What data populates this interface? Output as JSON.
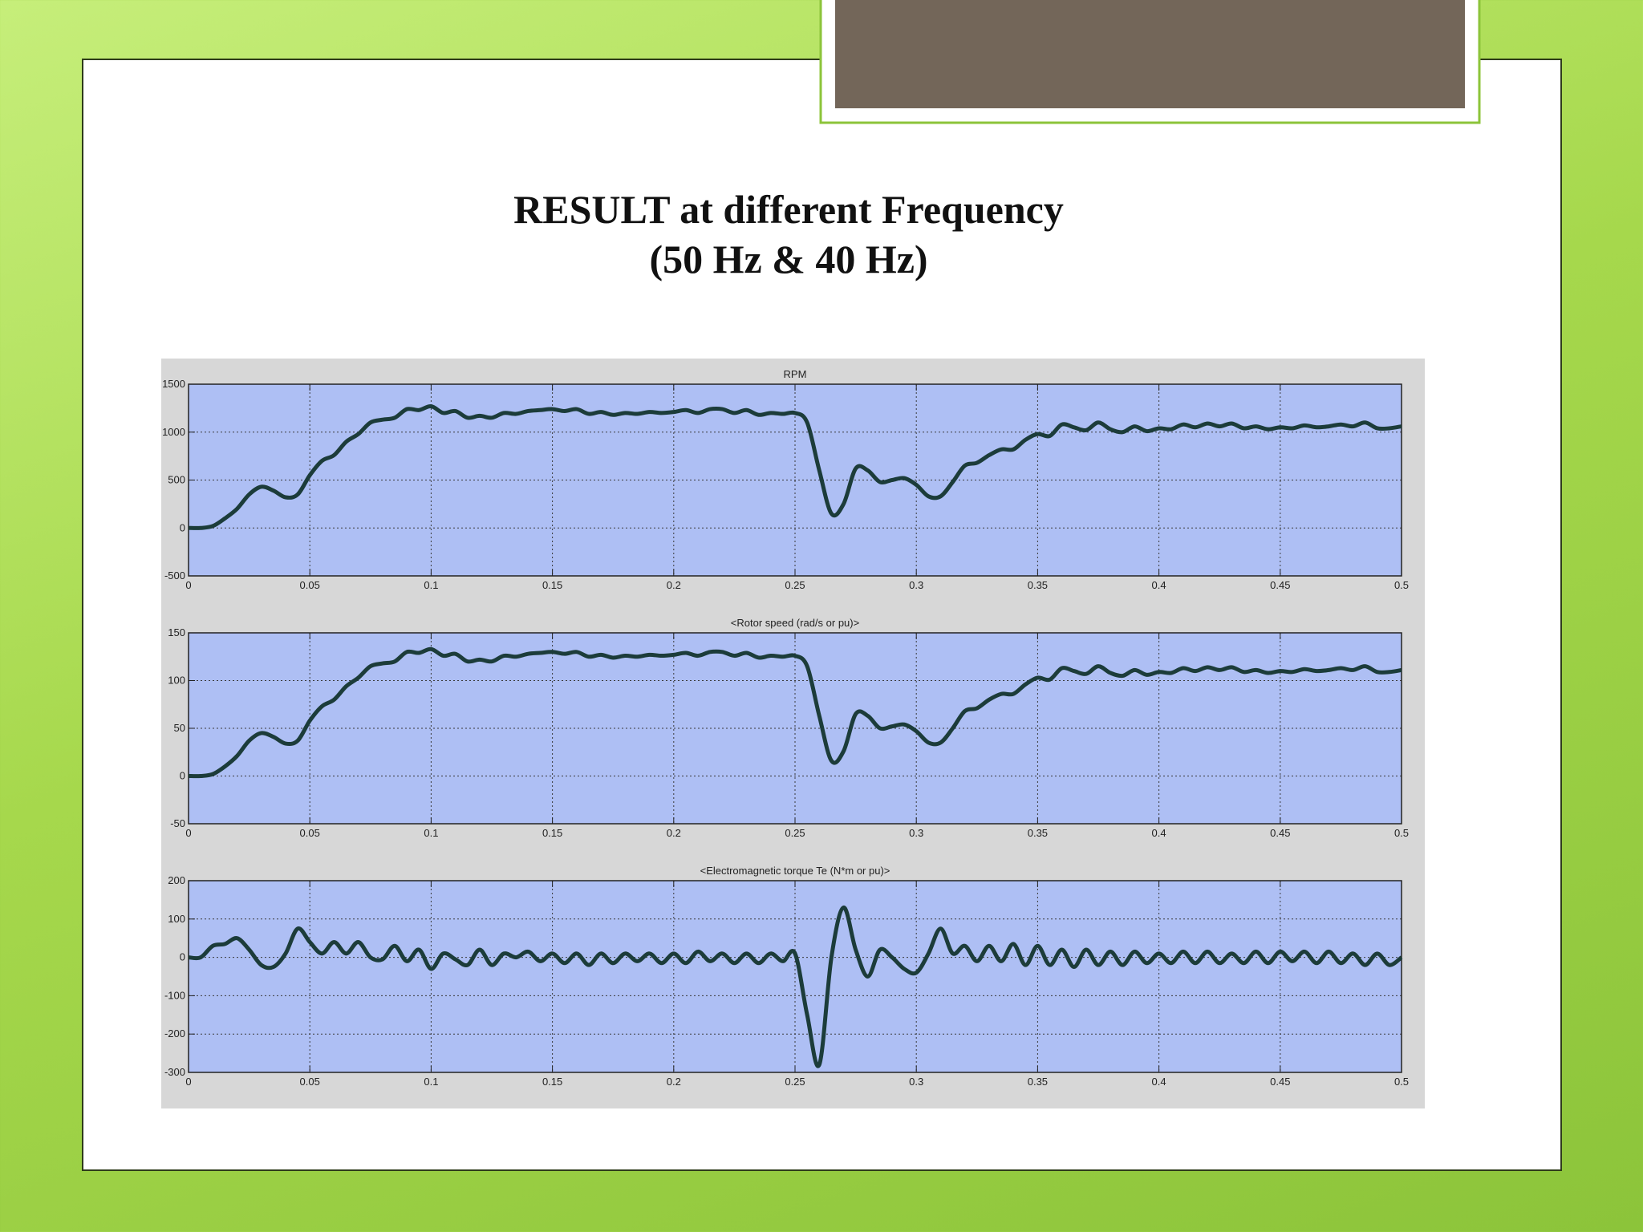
{
  "title": [
    "RESULT at different Frequency",
    "(50 Hz & 40 Hz)"
  ],
  "chart_data": [
    {
      "type": "line",
      "title": "RPM",
      "x": [
        0,
        0.005,
        0.01,
        0.015,
        0.02,
        0.025,
        0.03,
        0.035,
        0.04,
        0.045,
        0.05,
        0.055,
        0.06,
        0.065,
        0.07,
        0.075,
        0.08,
        0.085,
        0.09,
        0.095,
        0.1,
        0.105,
        0.11,
        0.115,
        0.12,
        0.125,
        0.13,
        0.135,
        0.14,
        0.145,
        0.15,
        0.155,
        0.16,
        0.165,
        0.17,
        0.175,
        0.18,
        0.185,
        0.19,
        0.195,
        0.2,
        0.205,
        0.21,
        0.215,
        0.22,
        0.225,
        0.23,
        0.235,
        0.24,
        0.245,
        0.25,
        0.255,
        0.26,
        0.265,
        0.27,
        0.275,
        0.28,
        0.285,
        0.29,
        0.295,
        0.3,
        0.305,
        0.31,
        0.315,
        0.32,
        0.325,
        0.33,
        0.335,
        0.34,
        0.345,
        0.35,
        0.355,
        0.36,
        0.365,
        0.37,
        0.375,
        0.38,
        0.385,
        0.39,
        0.395,
        0.4,
        0.405,
        0.41,
        0.415,
        0.42,
        0.425,
        0.43,
        0.435,
        0.44,
        0.445,
        0.45,
        0.455,
        0.46,
        0.465,
        0.47,
        0.475,
        0.48,
        0.485,
        0.49,
        0.495,
        0.5
      ],
      "values": [
        0,
        0,
        20,
        100,
        200,
        350,
        430,
        390,
        320,
        350,
        550,
        700,
        760,
        900,
        980,
        1100,
        1130,
        1150,
        1240,
        1230,
        1270,
        1200,
        1220,
        1150,
        1170,
        1150,
        1200,
        1190,
        1220,
        1230,
        1240,
        1220,
        1240,
        1190,
        1210,
        1180,
        1200,
        1190,
        1210,
        1200,
        1210,
        1230,
        1200,
        1240,
        1240,
        1200,
        1230,
        1180,
        1200,
        1190,
        1200,
        1100,
        600,
        150,
        250,
        620,
        600,
        480,
        500,
        520,
        450,
        330,
        330,
        480,
        650,
        680,
        760,
        820,
        820,
        920,
        980,
        960,
        1080,
        1050,
        1020,
        1100,
        1030,
        1000,
        1060,
        1010,
        1040,
        1030,
        1080,
        1050,
        1090,
        1060,
        1090,
        1040,
        1060,
        1030,
        1050,
        1040,
        1070,
        1050,
        1060,
        1080,
        1060,
        1100,
        1040,
        1040,
        1060
      ],
      "color": "#1c3c3a",
      "xlim": [
        0,
        0.5
      ],
      "xticks": [
        0,
        0.05,
        0.1,
        0.15,
        0.2,
        0.25,
        0.3,
        0.35,
        0.4,
        0.45,
        0.5
      ],
      "ylim": [
        -500,
        1500
      ],
      "yticks": [
        -500,
        0,
        500,
        1000,
        1500
      ],
      "grid": true
    },
    {
      "type": "line",
      "title": "<Rotor speed (rad/s or pu)>",
      "x": [
        0,
        0.005,
        0.01,
        0.015,
        0.02,
        0.025,
        0.03,
        0.035,
        0.04,
        0.045,
        0.05,
        0.055,
        0.06,
        0.065,
        0.07,
        0.075,
        0.08,
        0.085,
        0.09,
        0.095,
        0.1,
        0.105,
        0.11,
        0.115,
        0.12,
        0.125,
        0.13,
        0.135,
        0.14,
        0.145,
        0.15,
        0.155,
        0.16,
        0.165,
        0.17,
        0.175,
        0.18,
        0.185,
        0.19,
        0.195,
        0.2,
        0.205,
        0.21,
        0.215,
        0.22,
        0.225,
        0.23,
        0.235,
        0.24,
        0.245,
        0.25,
        0.255,
        0.26,
        0.265,
        0.27,
        0.275,
        0.28,
        0.285,
        0.29,
        0.295,
        0.3,
        0.305,
        0.31,
        0.315,
        0.32,
        0.325,
        0.33,
        0.335,
        0.34,
        0.345,
        0.35,
        0.355,
        0.36,
        0.365,
        0.37,
        0.375,
        0.38,
        0.385,
        0.39,
        0.395,
        0.4,
        0.405,
        0.41,
        0.415,
        0.42,
        0.425,
        0.43,
        0.435,
        0.44,
        0.445,
        0.45,
        0.455,
        0.46,
        0.465,
        0.47,
        0.475,
        0.48,
        0.485,
        0.49,
        0.495,
        0.5
      ],
      "values": [
        0,
        0,
        2,
        10,
        21,
        37,
        45,
        41,
        34,
        37,
        58,
        73,
        80,
        94,
        103,
        115,
        118,
        120,
        130,
        129,
        133,
        126,
        128,
        120,
        122,
        120,
        126,
        125,
        128,
        129,
        130,
        128,
        130,
        125,
        127,
        124,
        126,
        125,
        127,
        126,
        127,
        129,
        126,
        130,
        130,
        126,
        129,
        124,
        126,
        125,
        126,
        115,
        63,
        16,
        26,
        65,
        63,
        50,
        52,
        54,
        47,
        35,
        35,
        50,
        68,
        71,
        80,
        86,
        86,
        96,
        103,
        101,
        113,
        110,
        107,
        115,
        108,
        105,
        111,
        106,
        109,
        108,
        113,
        110,
        114,
        111,
        114,
        109,
        111,
        108,
        110,
        109,
        112,
        110,
        111,
        113,
        111,
        115,
        109,
        109,
        111
      ],
      "color": "#1c3c3a",
      "xlim": [
        0,
        0.5
      ],
      "xticks": [
        0,
        0.05,
        0.1,
        0.15,
        0.2,
        0.25,
        0.3,
        0.35,
        0.4,
        0.45,
        0.5
      ],
      "ylim": [
        -50,
        150
      ],
      "yticks": [
        -50,
        0,
        50,
        100,
        150
      ],
      "grid": true
    },
    {
      "type": "line",
      "title": "<Electromagnetic torque Te (N*m or pu)>",
      "x": [
        0,
        0.005,
        0.01,
        0.015,
        0.02,
        0.025,
        0.03,
        0.035,
        0.04,
        0.045,
        0.05,
        0.055,
        0.06,
        0.065,
        0.07,
        0.075,
        0.08,
        0.085,
        0.09,
        0.095,
        0.1,
        0.105,
        0.11,
        0.115,
        0.12,
        0.125,
        0.13,
        0.135,
        0.14,
        0.145,
        0.15,
        0.155,
        0.16,
        0.165,
        0.17,
        0.175,
        0.18,
        0.185,
        0.19,
        0.195,
        0.2,
        0.205,
        0.21,
        0.215,
        0.22,
        0.225,
        0.23,
        0.235,
        0.24,
        0.245,
        0.25,
        0.255,
        0.26,
        0.265,
        0.27,
        0.275,
        0.28,
        0.285,
        0.29,
        0.295,
        0.3,
        0.305,
        0.31,
        0.315,
        0.32,
        0.325,
        0.33,
        0.335,
        0.34,
        0.345,
        0.35,
        0.355,
        0.36,
        0.365,
        0.37,
        0.375,
        0.38,
        0.385,
        0.39,
        0.395,
        0.4,
        0.405,
        0.41,
        0.415,
        0.42,
        0.425,
        0.43,
        0.435,
        0.44,
        0.445,
        0.45,
        0.455,
        0.46,
        0.465,
        0.47,
        0.475,
        0.48,
        0.485,
        0.49,
        0.495,
        0.5
      ],
      "values": [
        0,
        0,
        30,
        35,
        50,
        20,
        -20,
        -25,
        10,
        75,
        40,
        10,
        40,
        10,
        40,
        0,
        -5,
        30,
        -10,
        20,
        -30,
        10,
        -5,
        -20,
        20,
        -20,
        10,
        0,
        15,
        -10,
        10,
        -15,
        10,
        -20,
        10,
        -15,
        10,
        -10,
        10,
        -15,
        10,
        -15,
        15,
        -10,
        10,
        -15,
        10,
        -15,
        10,
        -10,
        10,
        -150,
        -280,
        0,
        130,
        20,
        -50,
        20,
        0,
        -30,
        -40,
        10,
        75,
        10,
        30,
        -10,
        30,
        -10,
        35,
        -20,
        30,
        -20,
        20,
        -25,
        20,
        -20,
        15,
        -20,
        15,
        -15,
        10,
        -15,
        15,
        -15,
        15,
        -15,
        10,
        -15,
        15,
        -15,
        15,
        -10,
        15,
        -15,
        15,
        -15,
        10,
        -20,
        10,
        -20,
        0
      ],
      "color": "#1c3c3a",
      "xlim": [
        0,
        0.5
      ],
      "xticks": [
        0,
        0.05,
        0.1,
        0.15,
        0.2,
        0.25,
        0.3,
        0.35,
        0.4,
        0.45,
        0.5
      ],
      "ylim": [
        -300,
        200
      ],
      "yticks": [
        -300,
        -200,
        -100,
        0,
        100,
        200
      ],
      "grid": true
    }
  ]
}
